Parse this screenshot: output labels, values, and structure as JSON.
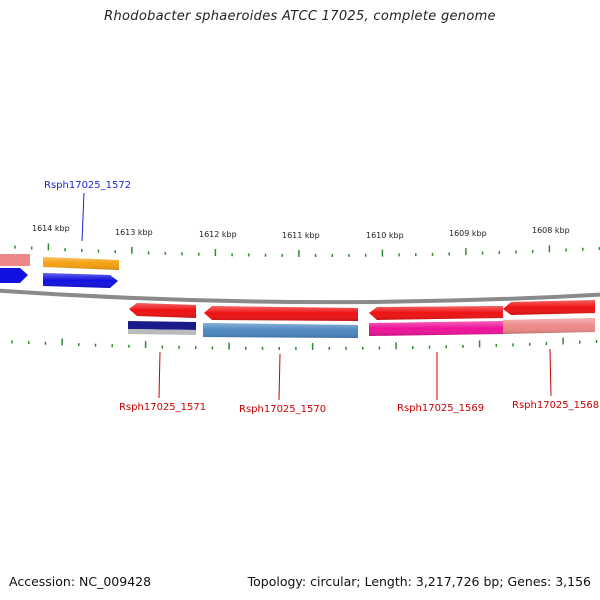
{
  "title": "Rhodobacter sphaeroides ATCC 17025, complete genome",
  "footer": {
    "accession": "Accession: NC_009428",
    "topology": "Topology: circular; Length: 3,217,726 bp; Genes: 3,156"
  },
  "colors": {
    "backbone": "#8a8a8a",
    "tick": "#2e8b2e",
    "label_forward": "#1f1fd0",
    "label_reverse": "#cc0000"
  },
  "ticks": [
    {
      "label": "1614 kbp"
    },
    {
      "label": "1613 kbp"
    },
    {
      "label": "1612 kbp"
    },
    {
      "label": "1611 kbp"
    },
    {
      "label": "1610 kbp"
    },
    {
      "label": "1609 kbp"
    },
    {
      "label": "1608 kbp"
    }
  ],
  "genes": [
    {
      "name": "Rsph17025_1572",
      "strand": "+",
      "color": "#1010e0",
      "cds_color": "#f5a010"
    },
    {
      "name": "Rsph17025_1571",
      "strand": "-",
      "color": "#ee1111",
      "cds_color": "#1a1a8a"
    },
    {
      "name": "Rsph17025_1570",
      "strand": "-",
      "color": "#ee1111",
      "cds_color": "#4a86c0"
    },
    {
      "name": "Rsph17025_1569",
      "strand": "-",
      "color": "#ee1111",
      "cds_color": "#ee1199"
    },
    {
      "name": "Rsph17025_1568",
      "strand": "-",
      "color": "#ee1111",
      "cds_color": "#ee8888"
    }
  ]
}
